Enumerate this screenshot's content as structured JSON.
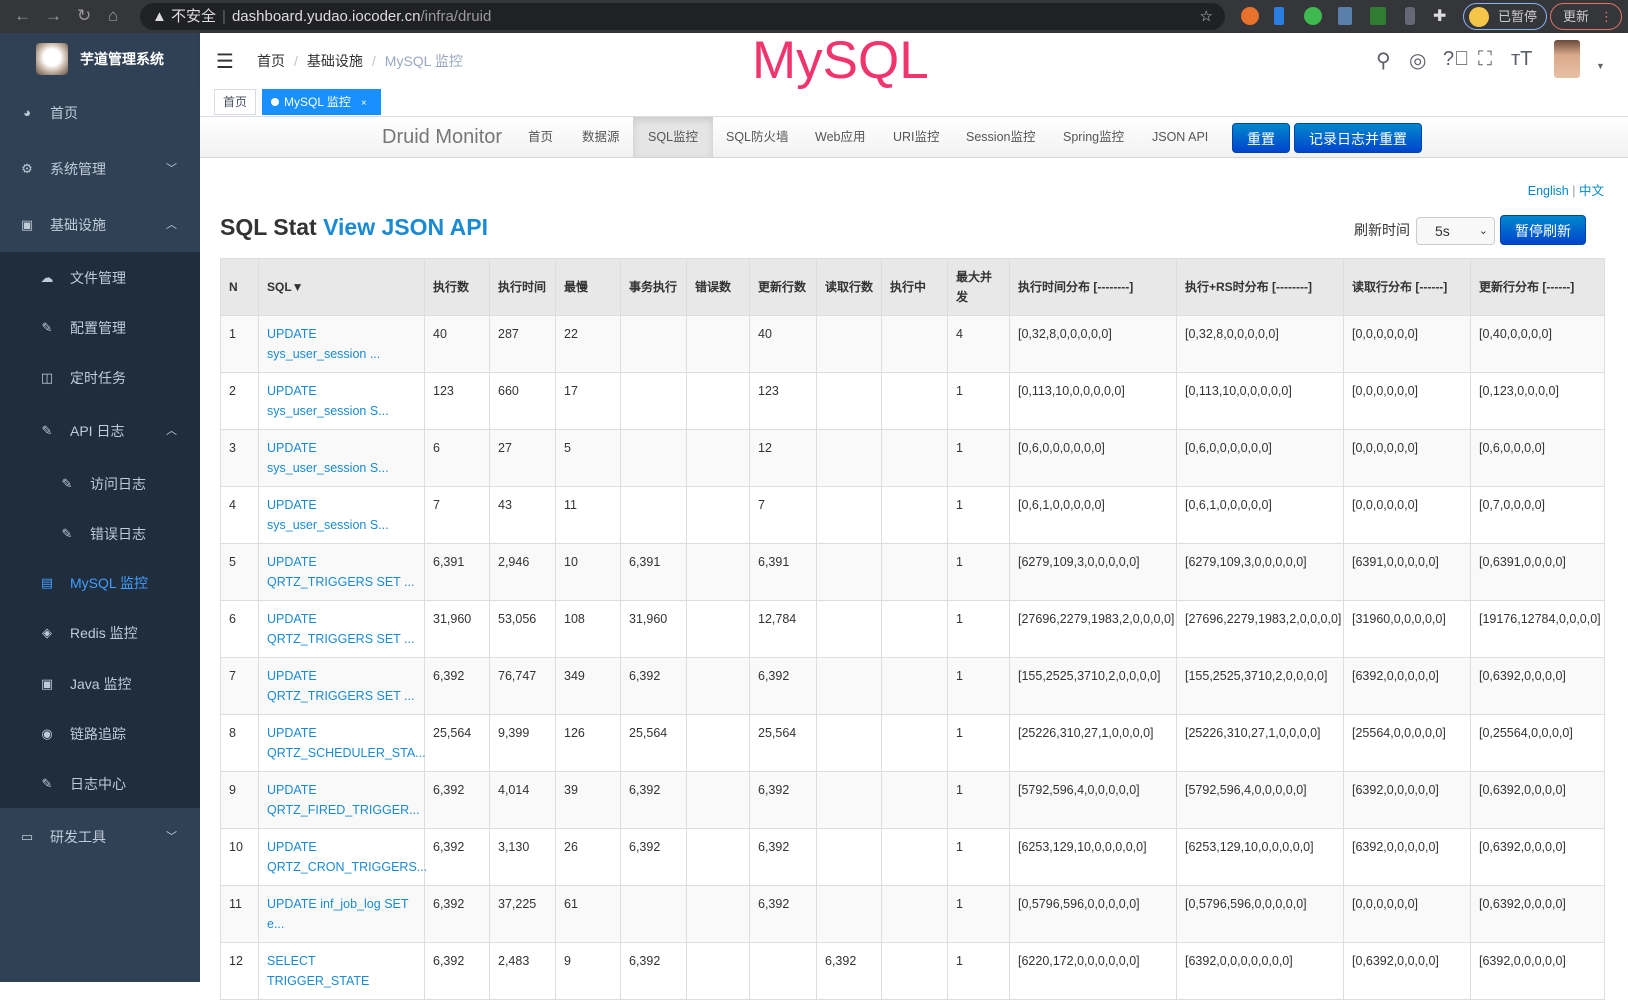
{
  "browser": {
    "insecure_label": "不安全",
    "url_host": "dashboard.yudao.iocoder.cn",
    "url_path": "/infra/druid",
    "paused_label": "已暂停",
    "update_label": "更新"
  },
  "sidebar": {
    "title": "芋道管理系统",
    "items": [
      {
        "label": "首页",
        "icon": "dashboard-icon"
      },
      {
        "label": "系统管理",
        "icon": "gear-icon",
        "chevron": "down"
      },
      {
        "label": "基础设施",
        "icon": "monitor-icon",
        "chevron": "up"
      },
      {
        "label": "文件管理",
        "icon": "upload-icon"
      },
      {
        "label": "配置管理",
        "icon": "edit-icon"
      },
      {
        "label": "定时任务",
        "icon": "job-icon"
      },
      {
        "label": "API 日志",
        "icon": "log-icon",
        "chevron": "up"
      },
      {
        "label": "访问日志",
        "icon": "log-icon"
      },
      {
        "label": "错误日志",
        "icon": "log-icon"
      },
      {
        "label": "MySQL 监控",
        "icon": "database-icon",
        "active": true
      },
      {
        "label": "Redis 监控",
        "icon": "redis-icon"
      },
      {
        "label": "Java 监控",
        "icon": "monitor-icon"
      },
      {
        "label": "链路追踪",
        "icon": "eye-icon"
      },
      {
        "label": "日志中心",
        "icon": "log-icon"
      },
      {
        "label": "研发工具",
        "icon": "toolbox-icon",
        "chevron": "down"
      }
    ]
  },
  "navbar": {
    "breadcrumb": [
      "首页",
      "基础设施",
      "MySQL 监控"
    ],
    "overlay_title": "MySQL"
  },
  "tags": {
    "items": [
      "首页",
      "MySQL 监控"
    ],
    "close": "×"
  },
  "druid": {
    "brand": "Druid Monitor",
    "nav": [
      "首页",
      "数据源",
      "SQL监控",
      "SQL防火墙",
      "Web应用",
      "URI监控",
      "Session监控",
      "Spring监控",
      "JSON API"
    ],
    "active_nav": "SQL监控",
    "reset_label": "重置",
    "log_reset_label": "记录日志并重置",
    "lang_en": "English",
    "lang_sep": "|",
    "lang_zh": "中文",
    "title": "SQL Stat",
    "title_link": "View JSON API",
    "refresh_label": "刷新时间",
    "refresh_value": "5s",
    "pause_label": "暂停刷新",
    "accent": "#0088cc"
  },
  "table": {
    "headers": [
      "N",
      "SQL▼",
      "执行数",
      "执行时间",
      "最慢",
      "事务执行",
      "错误数",
      "更新行数",
      "读取行数",
      "执行中",
      "最大并发",
      "执行时间分布 [--------]",
      "执行+RS时分布 [--------]",
      "读取行分布 [------]",
      "更新行分布 [------]"
    ],
    "rows": [
      [
        "1",
        "UPDATE sys_user_session ...",
        "40",
        "287",
        "22",
        "",
        "",
        "40",
        "",
        "",
        "4",
        "[0,32,8,0,0,0,0,0]",
        "[0,32,8,0,0,0,0,0]",
        "[0,0,0,0,0,0]",
        "[0,40,0,0,0,0]"
      ],
      [
        "2",
        "UPDATE sys_user_session S...",
        "123",
        "660",
        "17",
        "",
        "",
        "123",
        "",
        "",
        "1",
        "[0,113,10,0,0,0,0,0]",
        "[0,113,10,0,0,0,0,0]",
        "[0,0,0,0,0,0]",
        "[0,123,0,0,0,0]"
      ],
      [
        "3",
        "UPDATE sys_user_session S...",
        "6",
        "27",
        "5",
        "",
        "",
        "12",
        "",
        "",
        "1",
        "[0,6,0,0,0,0,0,0]",
        "[0,6,0,0,0,0,0,0]",
        "[0,0,0,0,0,0]",
        "[0,6,0,0,0,0]"
      ],
      [
        "4",
        "UPDATE sys_user_session S...",
        "7",
        "43",
        "11",
        "",
        "",
        "7",
        "",
        "",
        "1",
        "[0,6,1,0,0,0,0,0]",
        "[0,6,1,0,0,0,0,0]",
        "[0,0,0,0,0,0]",
        "[0,7,0,0,0,0]"
      ],
      [
        "5",
        "UPDATE QRTZ_TRIGGERS SET ...",
        "6,391",
        "2,946",
        "10",
        "6,391",
        "",
        "6,391",
        "",
        "",
        "1",
        "[6279,109,3,0,0,0,0,0]",
        "[6279,109,3,0,0,0,0,0]",
        "[6391,0,0,0,0,0]",
        "[0,6391,0,0,0,0]"
      ],
      [
        "6",
        "UPDATE QRTZ_TRIGGERS SET ...",
        "31,960",
        "53,056",
        "108",
        "31,960",
        "",
        "12,784",
        "",
        "",
        "1",
        "[27696,2279,1983,2,0,0,0,0]",
        "[27696,2279,1983,2,0,0,0,0]",
        "[31960,0,0,0,0,0]",
        "[19176,12784,0,0,0,0]"
      ],
      [
        "7",
        "UPDATE QRTZ_TRIGGERS SET ...",
        "6,392",
        "76,747",
        "349",
        "6,392",
        "",
        "6,392",
        "",
        "",
        "1",
        "[155,2525,3710,2,0,0,0,0]",
        "[155,2525,3710,2,0,0,0,0]",
        "[6392,0,0,0,0,0]",
        "[0,6392,0,0,0,0]"
      ],
      [
        "8",
        "UPDATE QRTZ_SCHEDULER_STA...",
        "25,564",
        "9,399",
        "126",
        "25,564",
        "",
        "25,564",
        "",
        "",
        "1",
        "[25226,310,27,1,0,0,0,0]",
        "[25226,310,27,1,0,0,0,0]",
        "[25564,0,0,0,0,0]",
        "[0,25564,0,0,0,0]"
      ],
      [
        "9",
        "UPDATE QRTZ_FIRED_TRIGGER...",
        "6,392",
        "4,014",
        "39",
        "6,392",
        "",
        "6,392",
        "",
        "",
        "1",
        "[5792,596,4,0,0,0,0,0]",
        "[5792,596,4,0,0,0,0,0]",
        "[6392,0,0,0,0,0]",
        "[0,6392,0,0,0,0]"
      ],
      [
        "10",
        "UPDATE QRTZ_CRON_TRIGGERS...",
        "6,392",
        "3,130",
        "26",
        "6,392",
        "",
        "6,392",
        "",
        "",
        "1",
        "[6253,129,10,0,0,0,0,0]",
        "[6253,129,10,0,0,0,0,0]",
        "[6392,0,0,0,0,0]",
        "[0,6392,0,0,0,0]"
      ],
      [
        "11",
        "UPDATE inf_job_log SET e...",
        "6,392",
        "37,225",
        "61",
        "",
        "",
        "6,392",
        "",
        "",
        "1",
        "[0,5796,596,0,0,0,0,0]",
        "[0,5796,596,0,0,0,0,0]",
        "[0,0,0,0,0,0]",
        "[0,6392,0,0,0,0]"
      ],
      [
        "12",
        "SELECT TRIGGER_STATE",
        "6,392",
        "2,483",
        "9",
        "6,392",
        "",
        "",
        "6,392",
        "",
        "1",
        "[6220,172,0,0,0,0,0,0]",
        "[6392,0,0,0,0,0,0,0]",
        "[0,6392,0,0,0,0]",
        "[6392,0,0,0,0,0]"
      ]
    ]
  }
}
